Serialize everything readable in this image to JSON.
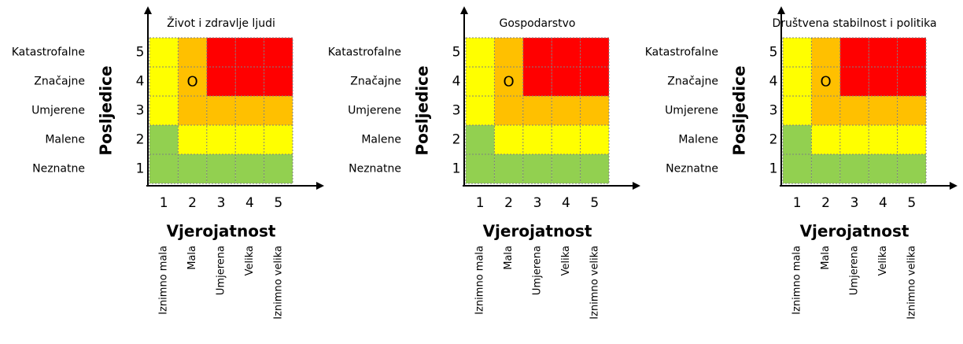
{
  "matrices": [
    {
      "title": "Život i zdravlje ljudi",
      "y_axis_title": "Posljedice",
      "x_axis_title": "Vjerojatnost",
      "severity_labels": [
        "Katastrofalne",
        "Značajne",
        "Umjerene",
        "Malene",
        "Neznatne"
      ],
      "y_numbers": [
        5,
        4,
        3,
        2,
        1
      ],
      "x_numbers": [
        1,
        2,
        3,
        4,
        5
      ],
      "likelihood_labels": [
        "Iznimno mala",
        "Mala",
        "Umjerena",
        "Velika",
        "Iznimno velika"
      ],
      "cells": [
        [
          "#ffff00",
          "#ffc000",
          "#ff0000",
          "#ff0000",
          "#ff0000"
        ],
        [
          "#ffff00",
          "#ffc000",
          "#ff0000",
          "#ff0000",
          "#ff0000"
        ],
        [
          "#ffff00",
          "#ffc000",
          "#ffc000",
          "#ffc000",
          "#ffc000"
        ],
        [
          "#92d050",
          "#ffff00",
          "#ffff00",
          "#ffff00",
          "#ffff00"
        ],
        [
          "#92d050",
          "#92d050",
          "#92d050",
          "#92d050",
          "#92d050"
        ]
      ],
      "marker": {
        "label": "O",
        "likelihood": 2,
        "consequence": 4
      }
    },
    {
      "title": "Gospodarstvo",
      "y_axis_title": "Posljedice",
      "x_axis_title": "Vjerojatnost",
      "severity_labels": [
        "Katastrofalne",
        "Značajne",
        "Umjerene",
        "Malene",
        "Neznatne"
      ],
      "y_numbers": [
        5,
        4,
        3,
        2,
        1
      ],
      "x_numbers": [
        1,
        2,
        3,
        4,
        5
      ],
      "likelihood_labels": [
        "Iznimno mala",
        "Mala",
        "Umjerena",
        "Velika",
        "Iznimno velika"
      ],
      "cells": [
        [
          "#ffff00",
          "#ffc000",
          "#ff0000",
          "#ff0000",
          "#ff0000"
        ],
        [
          "#ffff00",
          "#ffc000",
          "#ff0000",
          "#ff0000",
          "#ff0000"
        ],
        [
          "#ffff00",
          "#ffc000",
          "#ffc000",
          "#ffc000",
          "#ffc000"
        ],
        [
          "#92d050",
          "#ffff00",
          "#ffff00",
          "#ffff00",
          "#ffff00"
        ],
        [
          "#92d050",
          "#92d050",
          "#92d050",
          "#92d050",
          "#92d050"
        ]
      ],
      "marker": {
        "label": "O",
        "likelihood": 2,
        "consequence": 4
      }
    },
    {
      "title": "Društvena stabilnost i politika",
      "y_axis_title": "Posljedice",
      "x_axis_title": "Vjerojatnost",
      "severity_labels": [
        "Katastrofalne",
        "Značajne",
        "Umjerene",
        "Malene",
        "Neznatne"
      ],
      "y_numbers": [
        5,
        4,
        3,
        2,
        1
      ],
      "x_numbers": [
        1,
        2,
        3,
        4,
        5
      ],
      "likelihood_labels": [
        "Iznimno mala",
        "Mala",
        "Umjerena",
        "Velika",
        "Iznimno velika"
      ],
      "cells": [
        [
          "#ffff00",
          "#ffc000",
          "#ff0000",
          "#ff0000",
          "#ff0000"
        ],
        [
          "#ffff00",
          "#ffc000",
          "#ff0000",
          "#ff0000",
          "#ff0000"
        ],
        [
          "#ffff00",
          "#ffc000",
          "#ffc000",
          "#ffc000",
          "#ffc000"
        ],
        [
          "#92d050",
          "#ffff00",
          "#ffff00",
          "#ffff00",
          "#ffff00"
        ],
        [
          "#92d050",
          "#92d050",
          "#92d050",
          "#92d050",
          "#92d050"
        ]
      ],
      "marker": {
        "label": "O",
        "likelihood": 2,
        "consequence": 4
      }
    }
  ]
}
